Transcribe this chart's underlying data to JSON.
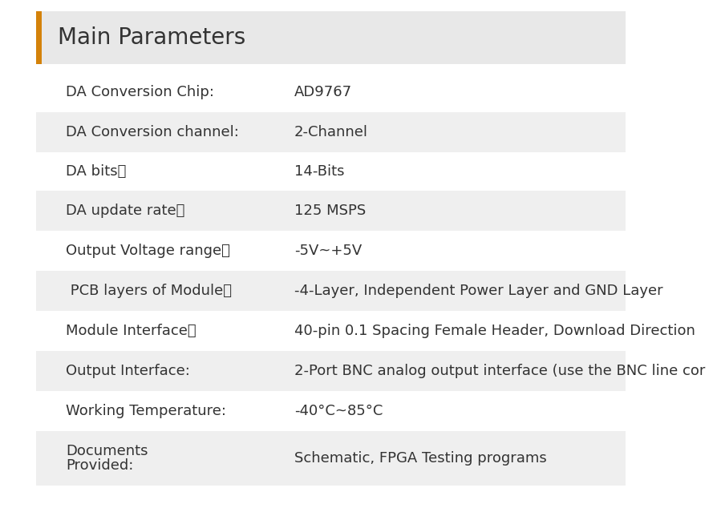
{
  "title": "Main Parameters",
  "title_fontsize": 20,
  "title_bg_color": "#e8e8e8",
  "title_accent_color": "#d4820a",
  "rows": [
    {
      "label": "DA Conversion Chip:",
      "value": "AD9767",
      "shaded": false
    },
    {
      "label": "DA Conversion channel:",
      "value": "2-Channel",
      "shaded": true
    },
    {
      "label": "DA bits：",
      "value": "14-Bits",
      "shaded": false
    },
    {
      "label": "DA update rate：",
      "value": "125 MSPS",
      "shaded": true
    },
    {
      "label": "Output Voltage range：",
      "value": "-5V~+5V",
      "shaded": false
    },
    {
      "label": " PCB layers of Module：",
      "value": "-4-Layer, Independent Power Layer and GND Layer",
      "shaded": true
    },
    {
      "label": "Module Interface：",
      "value": "40-pin 0.1 Spacing Female Header, Download Direction",
      "shaded": false
    },
    {
      "label": "Output Interface:",
      "value": "2-Port BNC analog output interface (use the BNC line cor",
      "shaded": true
    },
    {
      "label": "Working Temperature:",
      "value": "-40°C~85°C",
      "shaded": false
    },
    {
      "label": "Documents\nProvided:",
      "value": "Schematic, FPGA Testing programs",
      "shaded": true
    }
  ],
  "shaded_color": "#efefef",
  "white_color": "#ffffff",
  "bg_color": "#ffffff",
  "text_color": "#333333",
  "label_fontsize": 13,
  "value_fontsize": 13
}
